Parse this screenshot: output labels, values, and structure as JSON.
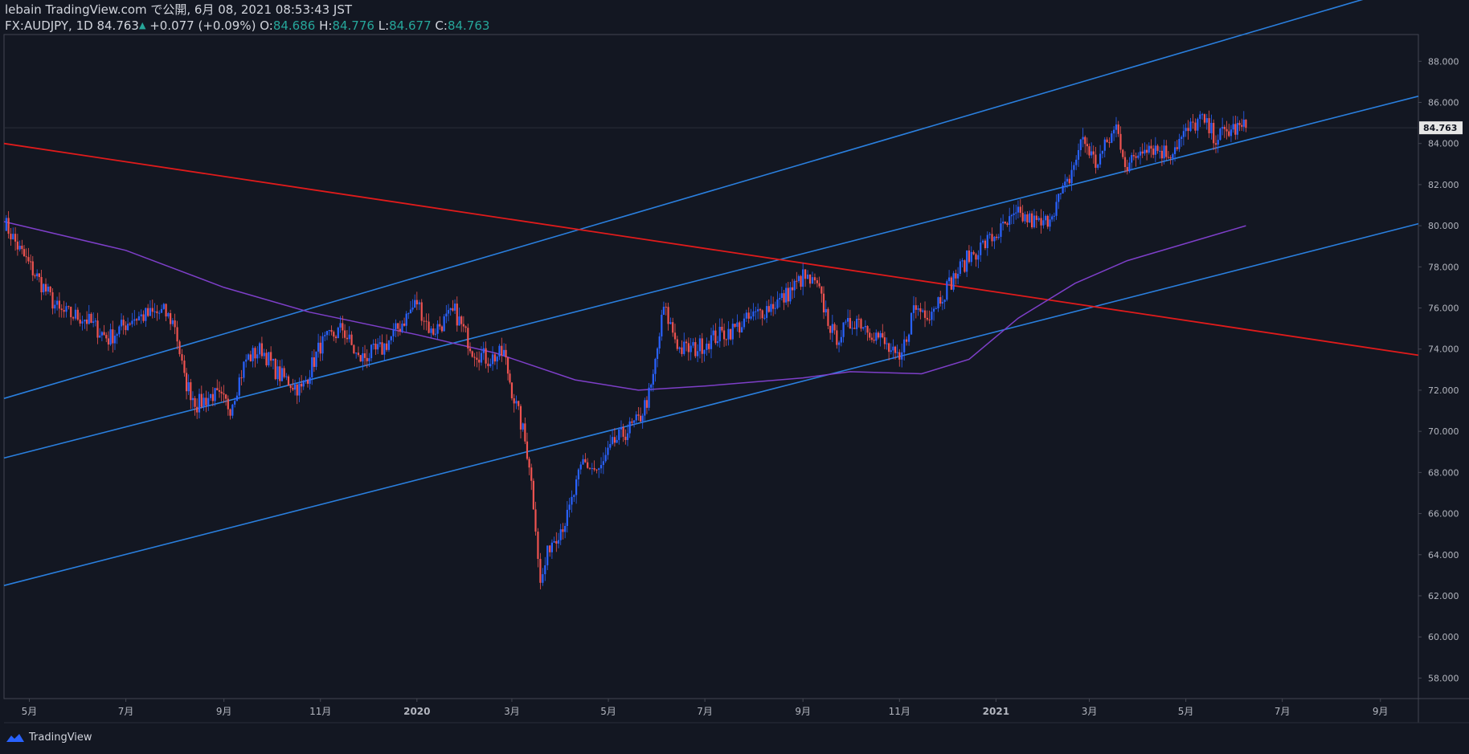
{
  "header": {
    "line1": "lebain TradingView.com で公開, 6月 08, 2021 08:53:43 JST",
    "symbol": "FX:AUDJPY, 1D",
    "last": "84.763",
    "change": "+0.077 (+0.09%)",
    "o_label": "O:",
    "o_value": "84.686",
    "h_label": "H:",
    "h_value": "84.776",
    "l_label": "L:",
    "l_value": "84.677",
    "c_label": "C:",
    "c_value": "84.763"
  },
  "footer": {
    "brand": "TradingView"
  },
  "colors": {
    "background": "#131722",
    "up_candle": "#2962ff",
    "down_candle": "#ef5350",
    "channel_lines": "#2a7fde",
    "red_trendline": "#e01b1b",
    "moving_average": "#7e3fc9",
    "axis_text": "#b2b5be",
    "current_price_label_bg": "#e6e6e6"
  },
  "chart_data": {
    "type": "candlestick",
    "symbol": "FX:AUDJPY",
    "interval": "1D",
    "y_axis": {
      "position": "right",
      "ylim": [
        57.0,
        89.3
      ],
      "ticks": [
        "88.000",
        "86.000",
        "84.000",
        "82.000",
        "80.000",
        "78.000",
        "76.000",
        "74.000",
        "72.000",
        "70.000",
        "68.000",
        "66.000",
        "64.000",
        "62.000",
        "60.000",
        "58.000"
      ],
      "current_price_label": "84.763"
    },
    "x_axis": {
      "range": [
        "2019-04-15",
        "2021-09-25"
      ],
      "ticks": [
        {
          "date": "2019-05-01",
          "label": "5月"
        },
        {
          "date": "2019-07-01",
          "label": "7月"
        },
        {
          "date": "2019-09-01",
          "label": "9月"
        },
        {
          "date": "2019-11-01",
          "label": "11月"
        },
        {
          "date": "2020-01-01",
          "label": "2020"
        },
        {
          "date": "2020-03-01",
          "label": "3月"
        },
        {
          "date": "2020-05-01",
          "label": "5月"
        },
        {
          "date": "2020-07-01",
          "label": "7月"
        },
        {
          "date": "2020-09-01",
          "label": "9月"
        },
        {
          "date": "2020-11-01",
          "label": "11月"
        },
        {
          "date": "2021-01-01",
          "label": "2021"
        },
        {
          "date": "2021-03-01",
          "label": "3月"
        },
        {
          "date": "2021-05-01",
          "label": "5月"
        },
        {
          "date": "2021-07-01",
          "label": "7月"
        },
        {
          "date": "2021-09-01",
          "label": "9月"
        }
      ]
    },
    "price_path": [
      [
        "2019-04-15",
        80.2
      ],
      [
        "2019-04-25",
        78.8
      ],
      [
        "2019-05-10",
        77.0
      ],
      [
        "2019-05-20",
        75.8
      ],
      [
        "2019-06-05",
        75.5
      ],
      [
        "2019-06-20",
        74.5
      ],
      [
        "2019-07-05",
        75.5
      ],
      [
        "2019-07-25",
        75.8
      ],
      [
        "2019-08-01",
        75.2
      ],
      [
        "2019-08-07",
        72.5
      ],
      [
        "2019-08-15",
        71.3
      ],
      [
        "2019-08-25",
        71.8
      ],
      [
        "2019-09-05",
        71.2
      ],
      [
        "2019-09-15",
        73.5
      ],
      [
        "2019-09-25",
        74.0
      ],
      [
        "2019-10-05",
        72.8
      ],
      [
        "2019-10-20",
        72.0
      ],
      [
        "2019-11-01",
        74.2
      ],
      [
        "2019-11-15",
        75.0
      ],
      [
        "2019-11-25",
        73.5
      ],
      [
        "2019-12-10",
        74.0
      ],
      [
        "2019-12-20",
        75.0
      ],
      [
        "2020-01-01",
        76.3
      ],
      [
        "2020-01-10",
        74.8
      ],
      [
        "2020-01-25",
        75.8
      ],
      [
        "2020-02-05",
        74.0
      ],
      [
        "2020-02-15",
        73.5
      ],
      [
        "2020-02-25",
        73.8
      ],
      [
        "2020-03-01",
        72.0
      ],
      [
        "2020-03-08",
        70.0
      ],
      [
        "2020-03-12",
        68.5
      ],
      [
        "2020-03-16",
        65.5
      ],
      [
        "2020-03-19",
        62.5
      ],
      [
        "2020-03-25",
        64.5
      ],
      [
        "2020-04-05",
        65.8
      ],
      [
        "2020-04-15",
        68.5
      ],
      [
        "2020-04-25",
        68.0
      ],
      [
        "2020-05-05",
        69.5
      ],
      [
        "2020-05-20",
        70.5
      ],
      [
        "2020-05-28",
        72.0
      ],
      [
        "2020-06-05",
        76.0
      ],
      [
        "2020-06-15",
        74.0
      ],
      [
        "2020-06-25",
        74.0
      ],
      [
        "2020-07-05",
        74.5
      ],
      [
        "2020-07-20",
        75.0
      ],
      [
        "2020-08-05",
        75.8
      ],
      [
        "2020-08-20",
        76.5
      ],
      [
        "2020-09-01",
        77.5
      ],
      [
        "2020-09-10",
        77.0
      ],
      [
        "2020-09-21",
        74.5
      ],
      [
        "2020-10-05",
        75.5
      ],
      [
        "2020-10-20",
        74.5
      ],
      [
        "2020-11-01",
        73.3
      ],
      [
        "2020-11-10",
        76.0
      ],
      [
        "2020-11-20",
        75.8
      ],
      [
        "2020-12-01",
        77.0
      ],
      [
        "2020-12-15",
        78.5
      ],
      [
        "2020-12-31",
        79.5
      ],
      [
        "2021-01-15",
        80.5
      ],
      [
        "2021-01-31",
        80.0
      ],
      [
        "2021-02-15",
        82.0
      ],
      [
        "2021-02-25",
        84.3
      ],
      [
        "2021-03-05",
        83.0
      ],
      [
        "2021-03-18",
        84.8
      ],
      [
        "2021-03-25",
        82.8
      ],
      [
        "2021-04-05",
        84.0
      ],
      [
        "2021-04-20",
        83.5
      ],
      [
        "2021-05-01",
        84.5
      ],
      [
        "2021-05-10",
        85.2
      ],
      [
        "2021-05-20",
        84.3
      ],
      [
        "2021-05-31",
        84.7
      ],
      [
        "2021-06-08",
        84.763
      ]
    ],
    "overlays": [
      {
        "kind": "channel",
        "points": [
          [
            "2019-04-15",
            71.6
          ],
          [
            "2021-09-25",
            91.8
          ]
        ]
      },
      {
        "kind": "channel",
        "points": [
          [
            "2019-04-15",
            68.7
          ],
          [
            "2021-09-25",
            86.3
          ]
        ]
      },
      {
        "kind": "channel",
        "points": [
          [
            "2019-04-15",
            62.5
          ],
          [
            "2021-09-25",
            80.1
          ]
        ]
      },
      {
        "kind": "trendline",
        "points": [
          [
            "2019-04-15",
            84.0
          ],
          [
            "2021-09-25",
            73.7
          ]
        ]
      },
      {
        "kind": "moving_average",
        "points": [
          [
            "2019-04-15",
            80.2
          ],
          [
            "2019-07-01",
            78.8
          ],
          [
            "2019-09-01",
            77.0
          ],
          [
            "2019-10-25",
            75.8
          ],
          [
            "2020-01-01",
            74.7
          ],
          [
            "2020-02-20",
            73.8
          ],
          [
            "2020-04-10",
            72.5
          ],
          [
            "2020-05-20",
            72.0
          ],
          [
            "2020-07-01",
            72.2
          ],
          [
            "2020-09-01",
            72.6
          ],
          [
            "2020-10-01",
            72.9
          ],
          [
            "2020-11-15",
            72.8
          ],
          [
            "2020-12-15",
            73.5
          ],
          [
            "2021-01-15",
            75.5
          ],
          [
            "2021-02-20",
            77.2
          ],
          [
            "2021-03-25",
            78.3
          ],
          [
            "2021-06-08",
            80.0
          ]
        ]
      }
    ]
  }
}
